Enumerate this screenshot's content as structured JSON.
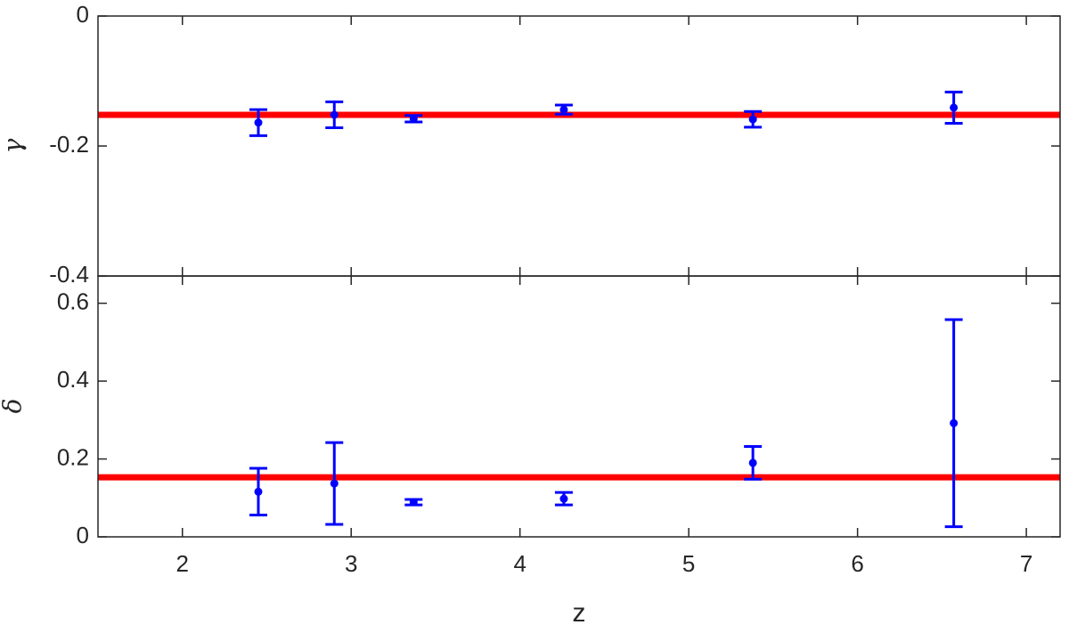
{
  "chart_data": [
    {
      "type": "scatter",
      "ylabel": "γ",
      "x": [
        2.45,
        2.9,
        3.37,
        4.26,
        5.38,
        6.57
      ],
      "series": [
        {
          "color": "#0000ff",
          "values": [
            -0.164,
            -0.152,
            -0.158,
            -0.144,
            -0.159,
            -0.141
          ],
          "errors": [
            0.02,
            0.02,
            0.005,
            0.007,
            0.012,
            0.024
          ]
        }
      ],
      "reference_line": {
        "value": -0.152,
        "color": "#ff0000"
      },
      "xlim": [
        1.5,
        7.2
      ],
      "xticks": [
        2,
        3,
        4,
        5,
        6,
        7
      ],
      "ylim": [
        -0.4,
        0
      ],
      "yticks": [
        0,
        -0.2,
        -0.4
      ]
    },
    {
      "type": "scatter",
      "xlabel": "z",
      "ylabel": "δ",
      "x": [
        2.45,
        2.9,
        3.37,
        4.26,
        5.38,
        6.57
      ],
      "series": [
        {
          "color": "#0000ff",
          "values": [
            0.116,
            0.137,
            0.089,
            0.098,
            0.19,
            0.292
          ],
          "errors": [
            0.06,
            0.105,
            0.007,
            0.016,
            0.042,
            0.266
          ]
        }
      ],
      "reference_line": {
        "value": 0.153,
        "color": "#ff0000"
      },
      "xlim": [
        1.5,
        7.2
      ],
      "xticks": [
        2,
        3,
        4,
        5,
        6,
        7
      ],
      "xtick_labels": true,
      "ylim": [
        0,
        0.67
      ],
      "yticks": [
        0,
        0.2,
        0.4,
        0.6
      ]
    }
  ]
}
